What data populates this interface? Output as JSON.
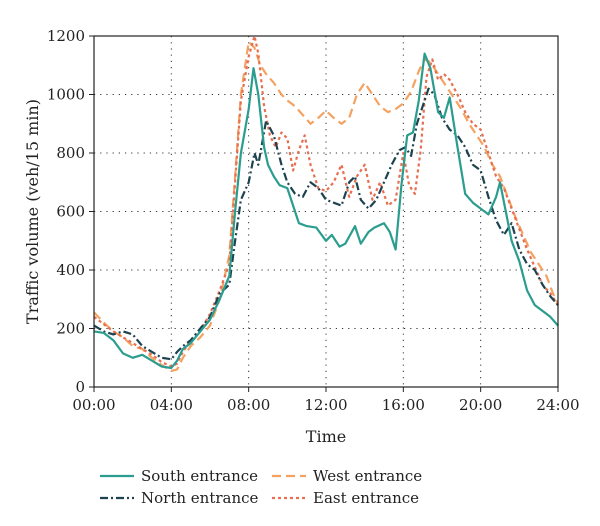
{
  "chart_data": {
    "type": "line",
    "xlabel": "Time",
    "ylabel": "Traffic volume (veh/15 min)",
    "xlim": [
      0,
      24
    ],
    "ylim": [
      0,
      1200
    ],
    "x_ticks": [
      {
        "value": 0,
        "label": "00:00"
      },
      {
        "value": 4,
        "label": "04:00"
      },
      {
        "value": 8,
        "label": "08:00"
      },
      {
        "value": 12,
        "label": "12:00"
      },
      {
        "value": 16,
        "label": "16:00"
      },
      {
        "value": 20,
        "label": "20:00"
      },
      {
        "value": 24,
        "label": "24:00"
      }
    ],
    "y_ticks": [
      {
        "value": 0,
        "label": "0"
      },
      {
        "value": 200,
        "label": "200"
      },
      {
        "value": 400,
        "label": "400"
      },
      {
        "value": 600,
        "label": "600"
      },
      {
        "value": 800,
        "label": "800"
      },
      {
        "value": 1000,
        "label": "1000"
      },
      {
        "value": 1200,
        "label": "1200"
      }
    ],
    "grid": true,
    "legend_position": "bottom",
    "series": [
      {
        "name": "South entrance",
        "color": "#2a9d8f",
        "style": "solid",
        "points": [
          [
            0,
            190
          ],
          [
            0.5,
            185
          ],
          [
            1,
            160
          ],
          [
            1.5,
            115
          ],
          [
            2,
            100
          ],
          [
            2.5,
            110
          ],
          [
            3,
            90
          ],
          [
            3.5,
            70
          ],
          [
            4,
            65
          ],
          [
            4.3,
            90
          ],
          [
            4.6,
            130
          ],
          [
            5,
            150
          ],
          [
            5.5,
            190
          ],
          [
            6,
            230
          ],
          [
            6.5,
            300
          ],
          [
            7,
            380
          ],
          [
            7.3,
            600
          ],
          [
            7.6,
            800
          ],
          [
            8,
            950
          ],
          [
            8.25,
            1090
          ],
          [
            8.5,
            1000
          ],
          [
            8.8,
            820
          ],
          [
            9,
            760
          ],
          [
            9.3,
            720
          ],
          [
            9.6,
            690
          ],
          [
            10,
            680
          ],
          [
            10.3,
            620
          ],
          [
            10.6,
            560
          ],
          [
            11,
            550
          ],
          [
            11.5,
            545
          ],
          [
            12,
            500
          ],
          [
            12.3,
            520
          ],
          [
            12.7,
            480
          ],
          [
            13,
            490
          ],
          [
            13.5,
            550
          ],
          [
            13.8,
            490
          ],
          [
            14.2,
            530
          ],
          [
            14.5,
            545
          ],
          [
            15,
            560
          ],
          [
            15.3,
            530
          ],
          [
            15.6,
            470
          ],
          [
            15.9,
            690
          ],
          [
            16.2,
            860
          ],
          [
            16.5,
            870
          ],
          [
            16.8,
            980
          ],
          [
            17.1,
            1140
          ],
          [
            17.4,
            1090
          ],
          [
            17.8,
            940
          ],
          [
            18.1,
            920
          ],
          [
            18.4,
            990
          ],
          [
            18.8,
            820
          ],
          [
            19.2,
            660
          ],
          [
            19.6,
            630
          ],
          [
            20,
            610
          ],
          [
            20.4,
            590
          ],
          [
            20.8,
            650
          ],
          [
            21,
            700
          ],
          [
            21.3,
            600
          ],
          [
            21.6,
            500
          ],
          [
            22,
            430
          ],
          [
            22.4,
            330
          ],
          [
            22.8,
            280
          ],
          [
            23.2,
            260
          ],
          [
            23.6,
            240
          ],
          [
            24,
            210
          ]
        ]
      },
      {
        "name": "North entrance",
        "color": "#1d4250",
        "style": "dashdot",
        "points": [
          [
            0,
            210
          ],
          [
            0.5,
            190
          ],
          [
            1,
            180
          ],
          [
            1.5,
            190
          ],
          [
            2,
            180
          ],
          [
            2.5,
            140
          ],
          [
            3,
            120
          ],
          [
            3.5,
            100
          ],
          [
            4,
            95
          ],
          [
            4.3,
            120
          ],
          [
            4.6,
            140
          ],
          [
            5,
            160
          ],
          [
            5.5,
            200
          ],
          [
            6,
            240
          ],
          [
            6.5,
            320
          ],
          [
            7,
            350
          ],
          [
            7.3,
            500
          ],
          [
            7.6,
            640
          ],
          [
            8,
            700
          ],
          [
            8.3,
            800
          ],
          [
            8.5,
            760
          ],
          [
            8.9,
            910
          ],
          [
            9.3,
            860
          ],
          [
            9.7,
            760
          ],
          [
            10,
            700
          ],
          [
            10.4,
            660
          ],
          [
            10.8,
            650
          ],
          [
            11.2,
            700
          ],
          [
            11.6,
            680
          ],
          [
            12,
            640
          ],
          [
            12.4,
            630
          ],
          [
            12.8,
            620
          ],
          [
            13.2,
            700
          ],
          [
            13.5,
            720
          ],
          [
            13.8,
            640
          ],
          [
            14.2,
            610
          ],
          [
            14.6,
            640
          ],
          [
            15,
            700
          ],
          [
            15.4,
            760
          ],
          [
            15.8,
            810
          ],
          [
            16.1,
            820
          ],
          [
            16.4,
            790
          ],
          [
            16.7,
            900
          ],
          [
            17,
            960
          ],
          [
            17.3,
            1020
          ],
          [
            17.6,
            1000
          ],
          [
            18,
            920
          ],
          [
            18.4,
            880
          ],
          [
            18.8,
            860
          ],
          [
            19.2,
            820
          ],
          [
            19.6,
            760
          ],
          [
            20,
            740
          ],
          [
            20.4,
            650
          ],
          [
            20.8,
            570
          ],
          [
            21.2,
            520
          ],
          [
            21.6,
            560
          ],
          [
            22,
            470
          ],
          [
            22.4,
            420
          ],
          [
            22.8,
            400
          ],
          [
            23.2,
            350
          ],
          [
            23.6,
            310
          ],
          [
            24,
            280
          ]
        ]
      },
      {
        "name": "West entrance",
        "color": "#f4a261",
        "style": "dashed",
        "points": [
          [
            0,
            255
          ],
          [
            0.5,
            220
          ],
          [
            1,
            190
          ],
          [
            1.5,
            170
          ],
          [
            2,
            140
          ],
          [
            2.5,
            130
          ],
          [
            3,
            100
          ],
          [
            3.5,
            75
          ],
          [
            4,
            55
          ],
          [
            4.3,
            60
          ],
          [
            4.6,
            100
          ],
          [
            5,
            140
          ],
          [
            5.5,
            170
          ],
          [
            6,
            210
          ],
          [
            6.5,
            300
          ],
          [
            7,
            450
          ],
          [
            7.3,
            720
          ],
          [
            7.6,
            1000
          ],
          [
            8,
            1180
          ],
          [
            8.3,
            1160
          ],
          [
            8.6,
            1100
          ],
          [
            8.9,
            1070
          ],
          [
            9.3,
            1040
          ],
          [
            9.7,
            1000
          ],
          [
            10,
            980
          ],
          [
            10.4,
            960
          ],
          [
            10.8,
            930
          ],
          [
            11.2,
            900
          ],
          [
            11.6,
            920
          ],
          [
            12,
            945
          ],
          [
            12.4,
            920
          ],
          [
            12.8,
            900
          ],
          [
            13.2,
            920
          ],
          [
            13.6,
            1000
          ],
          [
            14,
            1040
          ],
          [
            14.4,
            1000
          ],
          [
            14.8,
            960
          ],
          [
            15.2,
            940
          ],
          [
            15.6,
            950
          ],
          [
            16,
            970
          ],
          [
            16.4,
            1010
          ],
          [
            16.8,
            1080
          ],
          [
            17.1,
            1120
          ],
          [
            17.4,
            1110
          ],
          [
            17.8,
            1070
          ],
          [
            18.2,
            1030
          ],
          [
            18.6,
            990
          ],
          [
            19,
            950
          ],
          [
            19.4,
            900
          ],
          [
            19.8,
            860
          ],
          [
            20.2,
            820
          ],
          [
            20.6,
            760
          ],
          [
            21,
            720
          ],
          [
            21.4,
            650
          ],
          [
            21.8,
            580
          ],
          [
            22.2,
            520
          ],
          [
            22.6,
            460
          ],
          [
            23,
            420
          ],
          [
            23.4,
            380
          ],
          [
            23.8,
            310
          ],
          [
            24,
            285
          ]
        ]
      },
      {
        "name": "East entrance",
        "color": "#e76f51",
        "style": "dotted",
        "points": [
          [
            0,
            240
          ],
          [
            0.5,
            215
          ],
          [
            1,
            190
          ],
          [
            1.5,
            170
          ],
          [
            2,
            150
          ],
          [
            2.5,
            130
          ],
          [
            3,
            110
          ],
          [
            3.5,
            85
          ],
          [
            4,
            70
          ],
          [
            4.3,
            80
          ],
          [
            4.6,
            120
          ],
          [
            5,
            160
          ],
          [
            5.5,
            190
          ],
          [
            6,
            250
          ],
          [
            6.5,
            330
          ],
          [
            7,
            420
          ],
          [
            7.3,
            700
          ],
          [
            7.6,
            980
          ],
          [
            8,
            1130
          ],
          [
            8.3,
            1200
          ],
          [
            8.5,
            1140
          ],
          [
            8.8,
            960
          ],
          [
            9.1,
            860
          ],
          [
            9.4,
            820
          ],
          [
            9.7,
            870
          ],
          [
            10,
            850
          ],
          [
            10.3,
            740
          ],
          [
            10.6,
            810
          ],
          [
            10.9,
            860
          ],
          [
            11.2,
            760
          ],
          [
            11.6,
            680
          ],
          [
            12,
            670
          ],
          [
            12.4,
            700
          ],
          [
            12.8,
            760
          ],
          [
            13.2,
            650
          ],
          [
            13.6,
            720
          ],
          [
            14,
            760
          ],
          [
            14.4,
            640
          ],
          [
            14.8,
            700
          ],
          [
            15.2,
            620
          ],
          [
            15.6,
            640
          ],
          [
            16,
            800
          ],
          [
            16.3,
            690
          ],
          [
            16.6,
            660
          ],
          [
            16.9,
            810
          ],
          [
            17.2,
            1060
          ],
          [
            17.5,
            1120
          ],
          [
            17.8,
            1050
          ],
          [
            18.1,
            1070
          ],
          [
            18.4,
            1050
          ],
          [
            18.8,
            1000
          ],
          [
            19.2,
            940
          ],
          [
            19.6,
            900
          ],
          [
            20,
            880
          ],
          [
            20.4,
            800
          ],
          [
            20.8,
            720
          ],
          [
            21.2,
            680
          ],
          [
            21.6,
            610
          ],
          [
            22,
            540
          ],
          [
            22.4,
            470
          ],
          [
            22.8,
            410
          ],
          [
            23.2,
            350
          ],
          [
            23.6,
            320
          ],
          [
            24,
            280
          ]
        ]
      }
    ]
  }
}
